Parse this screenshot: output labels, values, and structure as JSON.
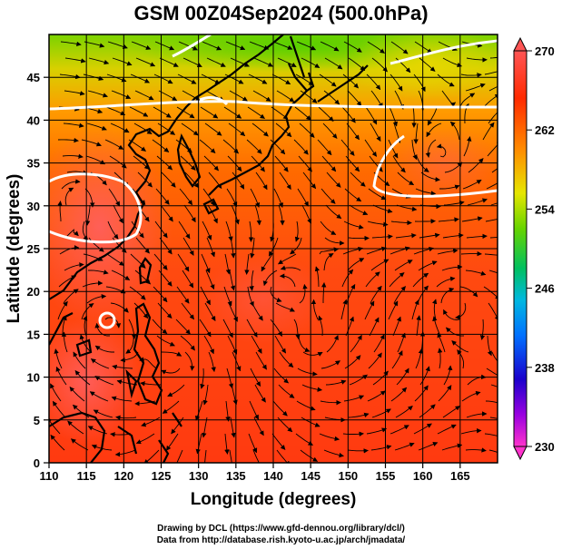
{
  "title": "GSM 00Z04Sep2024 (500.0hPa)",
  "axes": {
    "xlabel": "Longitude (degrees)",
    "ylabel": "Latitude  (degrees)",
    "x_range": [
      110,
      170
    ],
    "y_range": [
      0,
      50
    ],
    "x_ticks": [
      "110",
      "115",
      "120",
      "125",
      "130",
      "135",
      "140",
      "145",
      "150",
      "155",
      "160",
      "165"
    ],
    "y_ticks": [
      "0",
      "5",
      "10",
      "15",
      "20",
      "25",
      "30",
      "35",
      "40",
      "45"
    ],
    "grid_step_deg": 5
  },
  "colorbar": {
    "ticks": [
      "270",
      "262",
      "254",
      "246",
      "238",
      "230"
    ],
    "range": [
      230,
      270
    ],
    "colors": [
      "#ff33cc",
      "#b300ff",
      "#1a00cc",
      "#0066ff",
      "#00aaff",
      "#00e0c0",
      "#00c040",
      "#33d100",
      "#99e600",
      "#ffff00",
      "#ffb000",
      "#ff6a00",
      "#ff3000",
      "#ff5a5a"
    ]
  },
  "credits": {
    "drawing": "Drawing by DCL (https://www.gfd-dennou.org/library/dcl/)",
    "source": "Data from http://database.rish.kyoto-u.ac.jp/arch/jmadata/"
  }
}
